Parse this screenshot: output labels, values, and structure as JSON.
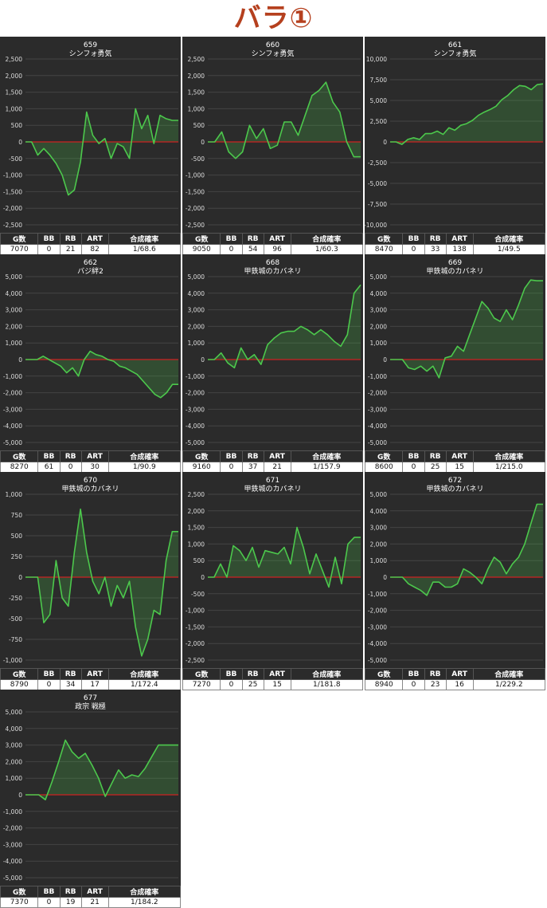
{
  "page": {
    "title": "バラ①"
  },
  "colors": {
    "line": "#4cc84c",
    "fill": "rgba(76,200,76,0.22)",
    "zero": "#cc2222",
    "grid": "#444444",
    "panel": "#2b2b2b",
    "title": "#b5401e"
  },
  "table_headers": [
    "G数",
    "BB",
    "RB",
    "ART",
    "合成確率"
  ],
  "chart_data": [
    {
      "type": "line",
      "title": "659",
      "subtitle": "シンフォ勇気",
      "ylim": [
        -2500,
        2500
      ],
      "yticks": [
        -2500,
        -2000,
        -1500,
        -1000,
        -500,
        0,
        500,
        1000,
        1500,
        2000,
        2500
      ],
      "ytick_labels": [
        "-2,500",
        "-2,000",
        "-1,500",
        "-1,000",
        "-500",
        "0",
        "500",
        "1,000",
        "1,500",
        "2,000",
        "2,500"
      ],
      "values": [
        0,
        0,
        -400,
        -200,
        -400,
        -650,
        -1000,
        -1600,
        -1450,
        -600,
        900,
        200,
        -50,
        100,
        -500,
        -50,
        -150,
        -500,
        1000,
        400,
        800,
        -50,
        800,
        700,
        650,
        650
      ],
      "stats": {
        "g": "7070",
        "bb": "0",
        "rb": "21",
        "art": "82",
        "rate": "1/68.6"
      }
    },
    {
      "type": "line",
      "title": "660",
      "subtitle": "シンフォ勇気",
      "ylim": [
        -2500,
        2500
      ],
      "yticks": [
        -2500,
        -2000,
        -1500,
        -1000,
        -500,
        0,
        500,
        1000,
        1500,
        2000,
        2500
      ],
      "ytick_labels": [
        "-2,500",
        "-2,000",
        "-1,500",
        "-1,000",
        "-500",
        "0",
        "500",
        "1,000",
        "1,500",
        "2,000",
        "2,500"
      ],
      "values": [
        0,
        0,
        300,
        -300,
        -500,
        -300,
        500,
        100,
        400,
        -200,
        -100,
        600,
        600,
        200,
        800,
        1400,
        1550,
        1800,
        1200,
        900,
        0,
        -450,
        -450
      ],
      "stats": {
        "g": "9050",
        "bb": "0",
        "rb": "54",
        "art": "96",
        "rate": "1/60.3"
      }
    },
    {
      "type": "line",
      "title": "661",
      "subtitle": "シンフォ勇気",
      "ylim": [
        -10000,
        10000
      ],
      "yticks": [
        -10000,
        -7500,
        -5000,
        -2500,
        0,
        2500,
        5000,
        7500,
        10000
      ],
      "ytick_labels": [
        "-10,000",
        "-7,500",
        "-5,000",
        "-2,500",
        "0",
        "2,500",
        "5,000",
        "7,500",
        "10,000"
      ],
      "values": [
        0,
        0,
        -300,
        300,
        500,
        300,
        1000,
        1000,
        1300,
        900,
        1700,
        1400,
        2000,
        2200,
        2600,
        3200,
        3600,
        3900,
        4300,
        5100,
        5600,
        6300,
        6800,
        6700,
        6300,
        6900,
        7000
      ],
      "stats": {
        "g": "8470",
        "bb": "0",
        "rb": "33",
        "art": "138",
        "rate": "1/49.5"
      }
    },
    {
      "type": "line",
      "title": "662",
      "subtitle": "バジ絆2",
      "ylim": [
        -5000,
        5000
      ],
      "yticks": [
        -5000,
        -4000,
        -3000,
        -2000,
        -1000,
        0,
        1000,
        2000,
        3000,
        4000,
        5000
      ],
      "ytick_labels": [
        "-5,000",
        "-4,000",
        "-3,000",
        "-2,000",
        "-1,000",
        "0",
        "1,000",
        "2,000",
        "3,000",
        "4,000",
        "5,000"
      ],
      "values": [
        0,
        0,
        0,
        200,
        0,
        -200,
        -400,
        -800,
        -500,
        -1000,
        0,
        500,
        300,
        200,
        0,
        -100,
        -400,
        -500,
        -700,
        -900,
        -1300,
        -1700,
        -2100,
        -2300,
        -2000,
        -1500,
        -1500
      ],
      "stats": {
        "g": "8270",
        "bb": "61",
        "rb": "0",
        "art": "30",
        "rate": "1/90.9"
      }
    },
    {
      "type": "line",
      "title": "668",
      "subtitle": "甲鉄城のカバネリ",
      "ylim": [
        -5000,
        5000
      ],
      "yticks": [
        -5000,
        -4000,
        -3000,
        -2000,
        -1000,
        0,
        1000,
        2000,
        3000,
        4000,
        5000
      ],
      "ytick_labels": [
        "-5,000",
        "-4,000",
        "-3,000",
        "-2,000",
        "-1,000",
        "0",
        "1,000",
        "2,000",
        "3,000",
        "4,000",
        "5,000"
      ],
      "values": [
        0,
        0,
        400,
        -200,
        -500,
        700,
        0,
        300,
        -300,
        900,
        1300,
        1600,
        1700,
        1700,
        2000,
        1800,
        1500,
        1800,
        1500,
        1100,
        800,
        1500,
        4000,
        4500
      ],
      "stats": {
        "g": "9160",
        "bb": "0",
        "rb": "37",
        "art": "21",
        "rate": "1/157.9"
      }
    },
    {
      "type": "line",
      "title": "669",
      "subtitle": "甲鉄城のカバネリ",
      "ylim": [
        -5000,
        5000
      ],
      "yticks": [
        -5000,
        -4000,
        -3000,
        -2000,
        -1000,
        0,
        1000,
        2000,
        3000,
        4000,
        5000
      ],
      "ytick_labels": [
        "-5,000",
        "-4,000",
        "-3,000",
        "-2,000",
        "-1,000",
        "0",
        "1,000",
        "2,000",
        "3,000",
        "4,000",
        "5,000"
      ],
      "values": [
        0,
        0,
        0,
        -500,
        -600,
        -400,
        -700,
        -400,
        -1100,
        100,
        200,
        800,
        500,
        1500,
        2500,
        3500,
        3100,
        2500,
        2300,
        3000,
        2400,
        3300,
        4300,
        4800,
        4750,
        4750
      ],
      "stats": {
        "g": "8600",
        "bb": "0",
        "rb": "25",
        "art": "15",
        "rate": "1/215.0"
      }
    },
    {
      "type": "line",
      "title": "670",
      "subtitle": "甲鉄城のカバネリ",
      "ylim": [
        -1000,
        1000
      ],
      "yticks": [
        -1000,
        -750,
        -500,
        -250,
        0,
        250,
        500,
        750,
        1000
      ],
      "ytick_labels": [
        "-1,000",
        "-750",
        "-500",
        "-250",
        "0",
        "250",
        "500",
        "750",
        "1,000"
      ],
      "values": [
        0,
        0,
        0,
        -550,
        -450,
        200,
        -250,
        -350,
        300,
        820,
        300,
        -50,
        -200,
        0,
        -350,
        -100,
        -250,
        -50,
        -600,
        -950,
        -750,
        -400,
        -450,
        200,
        550,
        550
      ],
      "stats": {
        "g": "8790",
        "bb": "0",
        "rb": "34",
        "art": "17",
        "rate": "1/172.4"
      }
    },
    {
      "type": "line",
      "title": "671",
      "subtitle": "甲鉄城のカバネリ",
      "ylim": [
        -2500,
        2500
      ],
      "yticks": [
        -2500,
        -2000,
        -1500,
        -1000,
        -500,
        0,
        500,
        1000,
        1500,
        2000,
        2500
      ],
      "ytick_labels": [
        "-2,500",
        "-2,000",
        "-1,500",
        "-1,000",
        "-500",
        "0",
        "500",
        "1,000",
        "1,500",
        "2,000",
        "2,500"
      ],
      "values": [
        0,
        0,
        400,
        0,
        950,
        800,
        500,
        900,
        300,
        800,
        750,
        700,
        900,
        400,
        1500,
        900,
        100,
        700,
        200,
        -300,
        600,
        -200,
        1000,
        1200,
        1200
      ],
      "stats": {
        "g": "7270",
        "bb": "0",
        "rb": "25",
        "art": "15",
        "rate": "1/181.8"
      }
    },
    {
      "type": "line",
      "title": "672",
      "subtitle": "甲鉄城のカバネリ",
      "ylim": [
        -5000,
        5000
      ],
      "yticks": [
        -5000,
        -4000,
        -3000,
        -2000,
        -1000,
        0,
        1000,
        2000,
        3000,
        4000,
        5000
      ],
      "ytick_labels": [
        "-5,000",
        "-4,000",
        "-3,000",
        "-2,000",
        "-1,000",
        "0",
        "1,000",
        "2,000",
        "3,000",
        "4,000",
        "5,000"
      ],
      "values": [
        0,
        0,
        0,
        -400,
        -600,
        -800,
        -1100,
        -300,
        -300,
        -600,
        -600,
        -400,
        500,
        300,
        0,
        -400,
        500,
        1200,
        900,
        200,
        800,
        1200,
        2000,
        3200,
        4400,
        4400
      ],
      "stats": {
        "g": "8940",
        "bb": "0",
        "rb": "23",
        "art": "16",
        "rate": "1/229.2"
      }
    },
    {
      "type": "line",
      "title": "677",
      "subtitle": "政宗 戦極",
      "ylim": [
        -5000,
        5000
      ],
      "yticks": [
        -5000,
        -4000,
        -3000,
        -2000,
        -1000,
        0,
        1000,
        2000,
        3000,
        4000,
        5000
      ],
      "ytick_labels": [
        "-5,000",
        "-4,000",
        "-3,000",
        "-2,000",
        "-1,000",
        "0",
        "1,000",
        "2,000",
        "3,000",
        "4,000",
        "5,000"
      ],
      "values": [
        0,
        0,
        0,
        -300,
        800,
        2000,
        3300,
        2600,
        2200,
        2500,
        1800,
        1000,
        -100,
        700,
        1500,
        1000,
        1200,
        1100,
        1600,
        2300,
        3000,
        3000,
        3000,
        3000
      ],
      "stats": {
        "g": "7370",
        "bb": "0",
        "rb": "19",
        "art": "21",
        "rate": "1/184.2"
      }
    }
  ]
}
